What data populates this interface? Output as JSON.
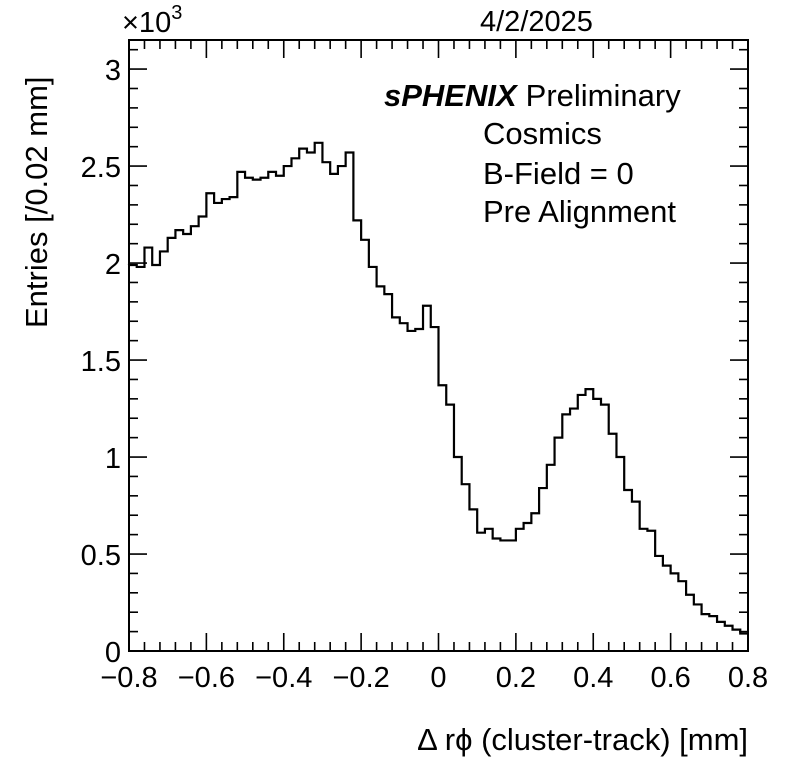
{
  "date": "4/2/2025",
  "chart_data": {
    "type": "step-histogram",
    "xlabel": "Δ rϕ (cluster-track) [mm]",
    "ylabel": "Entries [/0.02 mm]",
    "y_multiplier": "×10",
    "y_multiplier_exp": "3",
    "xlim": [
      -0.8,
      0.8
    ],
    "ylim": [
      0,
      3.15
    ],
    "bin_width": 0.02,
    "x_ticks": [
      "−0.8",
      "−0.6",
      "−0.4",
      "−0.2",
      "0",
      "0.2",
      "0.4",
      "0.6",
      "0.8"
    ],
    "x_tick_values": [
      -0.8,
      -0.6,
      -0.4,
      -0.2,
      0,
      0.2,
      0.4,
      0.6,
      0.8
    ],
    "y_ticks": [
      "0",
      "0.5",
      "1",
      "1.5",
      "2",
      "2.5",
      "3"
    ],
    "y_tick_values": [
      0,
      0.5,
      1,
      1.5,
      2,
      2.5,
      3
    ],
    "annotations": {
      "experiment": "sPHENIX",
      "status": "Preliminary",
      "line1": "Cosmics",
      "line2": "B-Field = 0",
      "line3": "Pre Alignment"
    },
    "series": [
      {
        "bin_edges_start": -0.8,
        "values": [
          1.99,
          1.98,
          2.08,
          1.99,
          2.06,
          2.13,
          2.17,
          2.15,
          2.19,
          2.24,
          2.36,
          2.31,
          2.33,
          2.34,
          2.47,
          2.44,
          2.43,
          2.44,
          2.47,
          2.45,
          2.5,
          2.54,
          2.59,
          2.57,
          2.62,
          2.52,
          2.46,
          2.5,
          2.57,
          2.22,
          2.12,
          1.98,
          1.88,
          1.84,
          1.72,
          1.69,
          1.65,
          1.66,
          1.78,
          1.67,
          1.37,
          1.27,
          1.0,
          0.86,
          0.73,
          0.61,
          0.63,
          0.58,
          0.57,
          0.57,
          0.63,
          0.66,
          0.71,
          0.84,
          0.96,
          1.1,
          1.22,
          1.25,
          1.32,
          1.35,
          1.3,
          1.27,
          1.12,
          1.0,
          0.83,
          0.77,
          0.63,
          0.62,
          0.49,
          0.44,
          0.4,
          0.36,
          0.29,
          0.24,
          0.19,
          0.18,
          0.15,
          0.13,
          0.11,
          0.09
        ]
      }
    ]
  }
}
